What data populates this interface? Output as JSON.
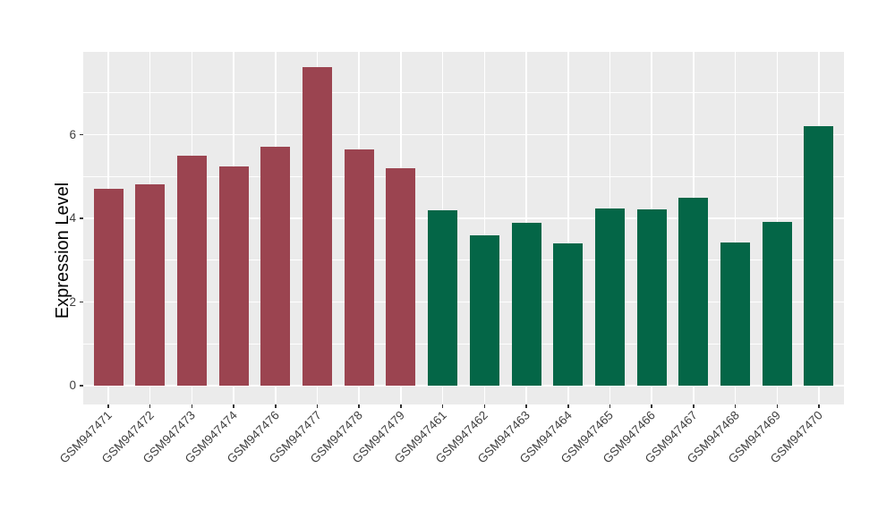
{
  "chart_data": {
    "type": "bar",
    "title": "",
    "xlabel": "",
    "ylabel": "Expression Level",
    "ylim": [
      0,
      8.05
    ],
    "yticks": [
      0,
      2,
      4,
      6
    ],
    "ymajor_gridlines": [
      0,
      2,
      4,
      6,
      8
    ],
    "yminor_gridlines": [
      1,
      3,
      5,
      7
    ],
    "grid": "on",
    "legend_position": "none",
    "panel_background": "#EBEBEB",
    "gridline_color": "#FFFFFF",
    "axis_text_color": "#404040",
    "axis_title_color": "#000000",
    "tick_mark_color": "#333333",
    "categories": [
      "GSM947471",
      "GSM947472",
      "GSM947473",
      "GSM947474",
      "GSM947476",
      "GSM947477",
      "GSM947478",
      "GSM947479",
      "GSM947461",
      "GSM947462",
      "GSM947463",
      "GSM947464",
      "GSM947465",
      "GSM947466",
      "GSM947467",
      "GSM947468",
      "GSM947469",
      "GSM947470"
    ],
    "values": [
      4.71,
      4.82,
      5.51,
      5.24,
      5.72,
      7.63,
      5.65,
      5.21,
      4.19,
      3.6,
      3.9,
      3.41,
      4.23,
      4.21,
      4.5,
      3.43,
      3.92,
      6.21
    ],
    "groups": [
      "red",
      "red",
      "red",
      "red",
      "red",
      "red",
      "red",
      "red",
      "green",
      "green",
      "green",
      "green",
      "green",
      "green",
      "green",
      "green",
      "green",
      "green"
    ],
    "group_colors": {
      "red": "#9B4450",
      "green": "#046647"
    }
  }
}
